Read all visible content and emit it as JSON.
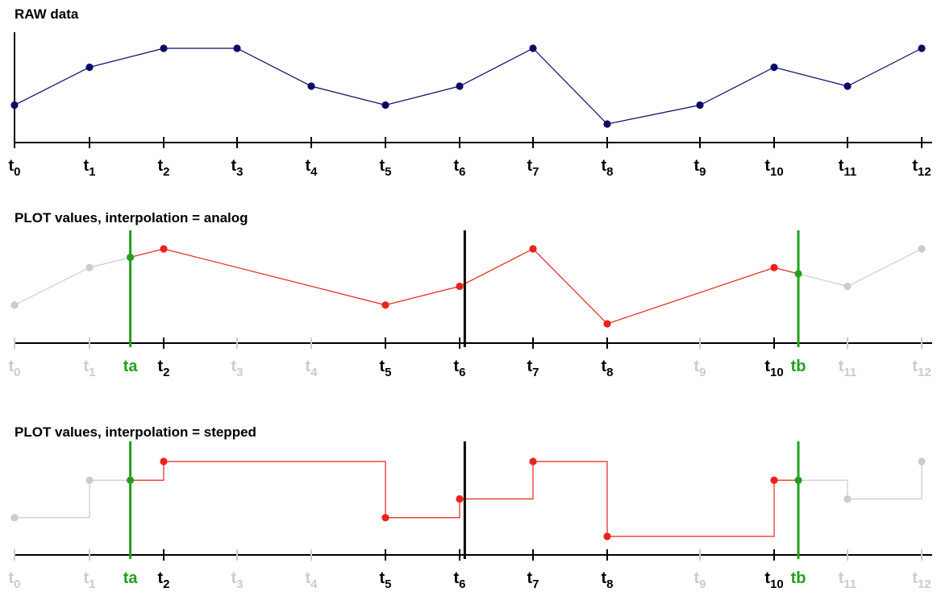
{
  "colors": {
    "raw_series": "#0b0b66",
    "selected_series": "#e8231b",
    "unselected_series": "#cccccc",
    "range_marker": "#22a01a",
    "cursor": "#000000",
    "axis": "#000000"
  },
  "time_ticks": [
    "t0",
    "t1",
    "t2",
    "t3",
    "t4",
    "t5",
    "t6",
    "t7",
    "t8",
    "t9",
    "t10",
    "t11",
    "t12"
  ],
  "raw_values": [
    2,
    4,
    5,
    5,
    3,
    2,
    3,
    5,
    1,
    2,
    4,
    3,
    5
  ],
  "range_markers": [
    {
      "label": "ta",
      "position": 1.55
    },
    {
      "label": "tb",
      "position": 10.33
    }
  ],
  "cursor_position": 6.07,
  "panels": [
    {
      "id": "raw",
      "title": "RAW data",
      "type": "raw",
      "highlight_ticks": []
    },
    {
      "id": "analog",
      "title": "PLOT values, interpolation = analog",
      "type": "analog",
      "highlight_ticks": [
        2,
        5,
        6,
        7,
        8,
        10
      ]
    },
    {
      "id": "stepped",
      "title": "PLOT values, interpolation = stepped",
      "type": "stepped",
      "highlight_ticks": [
        2,
        5,
        6,
        7,
        8,
        10
      ]
    }
  ]
}
